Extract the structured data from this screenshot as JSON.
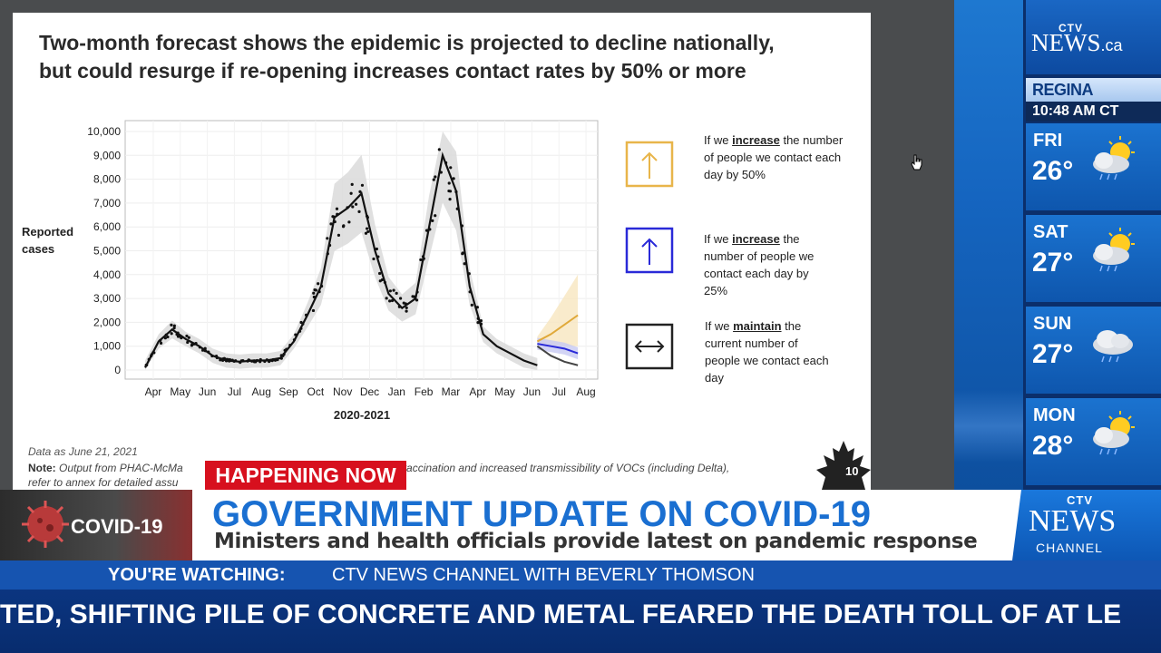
{
  "slide": {
    "title_line1": "Two-month forecast shows the epidemic is projected to decline nationally,",
    "title_line2": "but could resurge if re-opening increases contact rates by 50% or more",
    "data_note": "Data as June 21, 2021",
    "note_label": "Note:",
    "note_text_a": "Output from PHAC-McMa",
    "note_text_b": "of vaccination and increased transmissibility of VOCs (including Delta),",
    "note_text_c": "refer to annex for detailed assu",
    "page_number": "10",
    "legend": [
      {
        "pre": "If we ",
        "bold": "increase",
        "post": " the number of people we contact each day by 50%",
        "color": "#e8b54a"
      },
      {
        "pre": "If we ",
        "bold": "increase",
        "post": " the number of people we contact each day by 25%",
        "color": "#2a2ad8"
      },
      {
        "pre": "If we ",
        "bold": "maintain",
        "post": " the current number of people we contact each day",
        "color": "#222222"
      }
    ]
  },
  "chart_data": {
    "type": "line",
    "ylabel": "Reported cases",
    "xlabel": "2020-2021",
    "categories": [
      "Apr",
      "May",
      "Jun",
      "Jul",
      "Aug",
      "Sep",
      "Oct",
      "Nov",
      "Dec",
      "Jan",
      "Feb",
      "Mar",
      "Apr",
      "May",
      "Jun",
      "Jul",
      "Aug"
    ],
    "yticks": [
      "10,000",
      "9,000",
      "8,000",
      "7,000",
      "6,000",
      "5,000",
      "4,000",
      "3,000",
      "2,000",
      "1,000",
      "0"
    ],
    "ylim": [
      0,
      10000
    ],
    "series": [
      {
        "name": "",
        "x": [
          0,
          0.5,
          1,
          1.5,
          2,
          2.5,
          3,
          3.5,
          4,
          4.5,
          5,
          5.5,
          6,
          6.5,
          7,
          7.5,
          8,
          8.5,
          9,
          9.5,
          10,
          10.5,
          11,
          11.5,
          12,
          12.5,
          13,
          13.5,
          14,
          14.5
        ],
        "values": [
          100,
          1200,
          1700,
          1300,
          1000,
          600,
          400,
          350,
          400,
          400,
          500,
          1200,
          2300,
          3500,
          6400,
          6800,
          7400,
          5000,
          3200,
          2600,
          3000,
          6000,
          9000,
          7500,
          3500,
          1500,
          1000,
          700,
          400,
          200
        ]
      },
      {
        "name": "",
        "x": [
          14.5,
          15,
          15.5,
          16
        ],
        "values": [
          1100,
          1000,
          900,
          700
        ]
      },
      {
        "name": "",
        "x": [
          14.5,
          15,
          15.5,
          16
        ],
        "values": [
          1200,
          1500,
          1900,
          2300
        ]
      }
    ],
    "grid": true
  },
  "overlay": {
    "happening_now": "HAPPENING NOW",
    "topic_label": "COVID-19",
    "headline": "GOVERNMENT UPDATE ON COVID-19",
    "subhead": "Ministers and health officials provide latest on pandemic response",
    "watching_label": "YOU'RE WATCHING:",
    "watching_value": "CTV NEWS CHANNEL WITH BEVERLY THOMSON",
    "ticker": "TED, SHIFTING PILE OF CONCRETE AND METAL FEARED THE DEATH TOLL OF AT LE",
    "channel_ctv": "CTV",
    "channel_news": "NEWS",
    "channel_sub": "CHANNEL"
  },
  "weather": {
    "logo_ctv": "CTV",
    "logo_news": "NEWS",
    "logo_domain": ".ca",
    "city": "REGINA",
    "time": "10:48 AM CT",
    "days": [
      {
        "day": "FRI",
        "temp": "26°",
        "icon": "sun-cloud-rain-icon"
      },
      {
        "day": "SAT",
        "temp": "27°",
        "icon": "sun-cloud-rain-icon"
      },
      {
        "day": "SUN",
        "temp": "27°",
        "icon": "cloud-rain-icon"
      },
      {
        "day": "MON",
        "temp": "28°",
        "icon": "sun-cloud-rain-icon"
      }
    ]
  }
}
